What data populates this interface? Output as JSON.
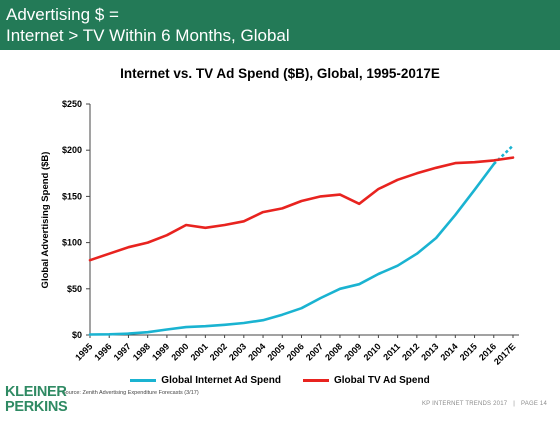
{
  "slide": {
    "title_line1": "Advertising $ =",
    "title_line2": "Internet > TV Within 6 Months, Global",
    "source": "Source: Zenith Advertising Expenditure Forecasts (3/17)",
    "logo_line1": "KLEINER",
    "logo_line2": "PERKINS",
    "footer_left": "KP INTERNET TRENDS 2017",
    "footer_sep": "|",
    "footer_right": "PAGE 14",
    "header_color": "#237a57",
    "logo_color": "#2f8a63"
  },
  "chart_data": {
    "type": "line",
    "title": "Internet vs. TV Ad Spend ($B), Global, 1995-2017E",
    "xlabel": "",
    "ylabel": "Global Advertising Spend ($B)",
    "categories": [
      "1995",
      "1996",
      "1997",
      "1998",
      "1999",
      "2000",
      "2001",
      "2002",
      "2003",
      "2004",
      "2005",
      "2006",
      "2007",
      "2008",
      "2009",
      "2010",
      "2011",
      "2012",
      "2013",
      "2014",
      "2015",
      "2016",
      "2017E"
    ],
    "ylim": [
      0,
      250
    ],
    "yticks": [
      0,
      50,
      100,
      150,
      200,
      250
    ],
    "ytick_labels": [
      "$0",
      "$50",
      "$100",
      "$150",
      "$200",
      "$250"
    ],
    "grid": false,
    "legend_position": "bottom",
    "series": [
      {
        "name": "Global Internet Ad Spend",
        "color": "#1ab3d1",
        "dashed_last_segment": true,
        "values": [
          0.5,
          0.8,
          1.5,
          3,
          6,
          8.5,
          9.5,
          11,
          13,
          16,
          22,
          29,
          40,
          50,
          55,
          66,
          75,
          88,
          105,
          130,
          157,
          185,
          205
        ]
      },
      {
        "name": "Global TV Ad Spend",
        "color": "#e8231f",
        "dashed_last_segment": false,
        "values": [
          81,
          88,
          95,
          100,
          108,
          119,
          116,
          119,
          123,
          133,
          137,
          145,
          150,
          152,
          142,
          158,
          168,
          175,
          181,
          186,
          187,
          189,
          192
        ]
      }
    ]
  }
}
